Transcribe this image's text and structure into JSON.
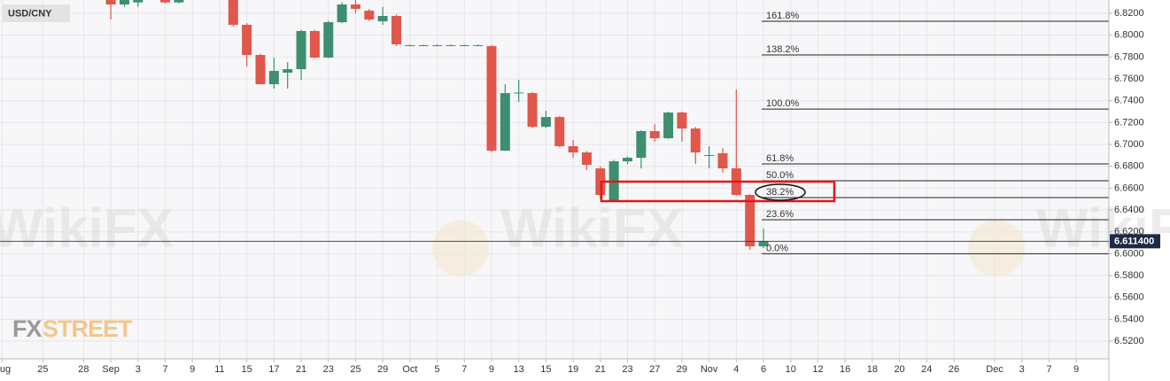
{
  "chart_data": {
    "type": "candlestick",
    "title": "USD/CNY",
    "watermark": "WikiFX",
    "brand_fx": "FX",
    "brand_street": "STREET",
    "up_color": "#3d8f6f",
    "down_color": "#e0574b",
    "grid": true,
    "x": [
      0,
      1,
      2,
      3,
      4,
      5,
      6,
      7,
      8,
      9,
      10,
      11,
      12,
      13,
      14,
      15,
      16,
      17,
      18,
      19,
      20,
      21,
      22,
      23,
      24,
      25,
      26,
      27,
      28,
      29,
      30,
      31,
      32,
      33,
      34,
      35,
      36,
      37,
      38,
      39,
      40,
      41,
      42,
      43,
      44,
      45,
      46,
      47,
      48
    ],
    "open": [
      6.84,
      6.8281,
      6.83,
      6.84,
      6.8322,
      6.83,
      6.838,
      6.837,
      6.842,
      6.834,
      6.8095,
      6.7819,
      6.7551,
      6.7657,
      6.7689,
      6.8038,
      6.7795,
      6.8119,
      6.8281,
      6.8224,
      6.8127,
      6.8176,
      6.7908,
      6.7908,
      6.7908,
      6.7908,
      6.7908,
      6.7908,
      6.79,
      6.6943,
      6.747,
      6.747,
      6.7162,
      6.7251,
      6.6984,
      6.6927,
      6.6781,
      6.6489,
      6.6846,
      6.6878,
      6.7122,
      6.7057,
      6.7292,
      6.7146,
      6.6903,
      6.6919,
      6.6781,
      6.6538,
      6.6068
    ],
    "high": [
      6.845,
      6.835,
      6.836,
      6.842,
      6.834,
      6.835,
      6.842,
      6.839,
      6.844,
      6.836,
      6.811,
      6.783,
      6.7795,
      6.7754,
      6.805,
      6.805,
      6.813,
      6.83,
      6.8322,
      6.824,
      6.826,
      6.819,
      6.7915,
      6.7915,
      6.7915,
      6.7915,
      6.7915,
      6.7915,
      6.791,
      6.7551,
      6.7592,
      6.748,
      6.7308,
      6.726,
      6.7041,
      6.694,
      6.68,
      6.686,
      6.689,
      6.713,
      6.7186,
      6.73,
      6.73,
      6.716,
      6.6984,
      6.6968,
      6.7503,
      6.6545,
      6.623
    ],
    "low": [
      6.8143,
      6.826,
      6.826,
      6.834,
      6.829,
      6.829,
      6.836,
      6.833,
      6.836,
      6.8078,
      6.7714,
      6.7551,
      6.7511,
      6.7511,
      6.7592,
      6.779,
      6.779,
      6.811,
      6.82,
      6.813,
      6.8095,
      6.79,
      6.79,
      6.79,
      6.79,
      6.79,
      6.79,
      6.79,
      6.693,
      6.694,
      6.7389,
      6.715,
      6.715,
      6.6975,
      6.6878,
      6.6765,
      6.65,
      6.648,
      6.682,
      6.6781,
      6.7024,
      6.705,
      6.7024,
      6.6822,
      6.6781,
      6.6741,
      6.653,
      6.6035,
      6.605
    ],
    "close": [
      6.8281,
      6.8322,
      6.833,
      6.836,
      6.83,
      6.833,
      6.84,
      6.835,
      6.838,
      6.8095,
      6.7819,
      6.7551,
      6.7673,
      6.7689,
      6.8038,
      6.7795,
      6.8119,
      6.8281,
      6.8241,
      6.8143,
      6.8176,
      6.7916,
      6.7908,
      6.7908,
      6.7908,
      6.7908,
      6.7908,
      6.7908,
      6.6943,
      6.747,
      6.7475,
      6.7162,
      6.7251,
      6.6984,
      6.6927,
      6.6814,
      6.6538,
      6.6846,
      6.6878,
      6.7122,
      6.7057,
      6.7292,
      6.7146,
      6.6927,
      6.6903,
      6.6781,
      6.6538,
      6.6068,
      6.6114
    ],
    "xlim": [
      -8.15,
      73.4
    ],
    "xticks": [
      {
        "value": -8,
        "label": "Aug"
      },
      {
        "value": -5,
        "label": "25"
      },
      {
        "value": -2,
        "label": "28"
      },
      {
        "value": 0,
        "label": "Sep"
      },
      {
        "value": 2,
        "label": "3"
      },
      {
        "value": 4,
        "label": "7"
      },
      {
        "value": 6,
        "label": "9"
      },
      {
        "value": 8,
        "label": "11"
      },
      {
        "value": 10,
        "label": "15"
      },
      {
        "value": 12,
        "label": "17"
      },
      {
        "value": 14,
        "label": "21"
      },
      {
        "value": 16,
        "label": "23"
      },
      {
        "value": 18,
        "label": "25"
      },
      {
        "value": 20,
        "label": "29"
      },
      {
        "value": 22,
        "label": "Oct"
      },
      {
        "value": 24,
        "label": "5"
      },
      {
        "value": 26,
        "label": "7"
      },
      {
        "value": 28,
        "label": "9"
      },
      {
        "value": 30,
        "label": "13"
      },
      {
        "value": 32,
        "label": "15"
      },
      {
        "value": 34,
        "label": "19"
      },
      {
        "value": 36,
        "label": "21"
      },
      {
        "value": 38,
        "label": "23"
      },
      {
        "value": 40,
        "label": "27"
      },
      {
        "value": 42,
        "label": "29"
      },
      {
        "value": 44,
        "label": "Nov"
      },
      {
        "value": 46,
        "label": "4"
      },
      {
        "value": 48,
        "label": "6"
      },
      {
        "value": 50,
        "label": "10"
      },
      {
        "value": 52,
        "label": "12"
      },
      {
        "value": 54,
        "label": "16"
      },
      {
        "value": 56,
        "label": "18"
      },
      {
        "value": 58,
        "label": "20"
      },
      {
        "value": 60,
        "label": "24"
      },
      {
        "value": 62,
        "label": "26"
      },
      {
        "value": 65,
        "label": "Dec"
      },
      {
        "value": 67,
        "label": "3"
      },
      {
        "value": 69,
        "label": "7"
      },
      {
        "value": 71,
        "label": "9"
      }
    ],
    "ylim": [
      6.5038,
      6.8322
    ],
    "yticks": [
      {
        "value": 6.52,
        "label": "6.5200"
      },
      {
        "value": 6.54,
        "label": "6.5400"
      },
      {
        "value": 6.56,
        "label": "6.5600"
      },
      {
        "value": 6.58,
        "label": "6.5800"
      },
      {
        "value": 6.6,
        "label": "6.6000"
      },
      {
        "value": 6.62,
        "label": "6.6200"
      },
      {
        "value": 6.64,
        "label": "6.6400"
      },
      {
        "value": 6.66,
        "label": "6.6600"
      },
      {
        "value": 6.68,
        "label": "6.6800"
      },
      {
        "value": 6.7,
        "label": "6.7000"
      },
      {
        "value": 6.72,
        "label": "6.7200"
      },
      {
        "value": 6.74,
        "label": "6.7400"
      },
      {
        "value": 6.76,
        "label": "6.7600"
      },
      {
        "value": 6.78,
        "label": "6.7800"
      },
      {
        "value": 6.8,
        "label": "6.8000"
      },
      {
        "value": 6.82,
        "label": "6.8200"
      }
    ],
    "fib_levels": [
      {
        "value": 6.8127,
        "label": "161.8%"
      },
      {
        "value": 6.7819,
        "label": "138.2%"
      },
      {
        "value": 6.7324,
        "label": "100.0%"
      },
      {
        "value": 6.6822,
        "label": "61.8%"
      },
      {
        "value": 6.6668,
        "label": "50.0%"
      },
      {
        "value": 6.6514,
        "label": "38.2%"
      },
      {
        "value": 6.6311,
        "label": "23.6%"
      },
      {
        "value": 6.6,
        "label": "0.0%"
      }
    ],
    "last_price": {
      "value": 6.6114,
      "label": "6.611400"
    }
  }
}
